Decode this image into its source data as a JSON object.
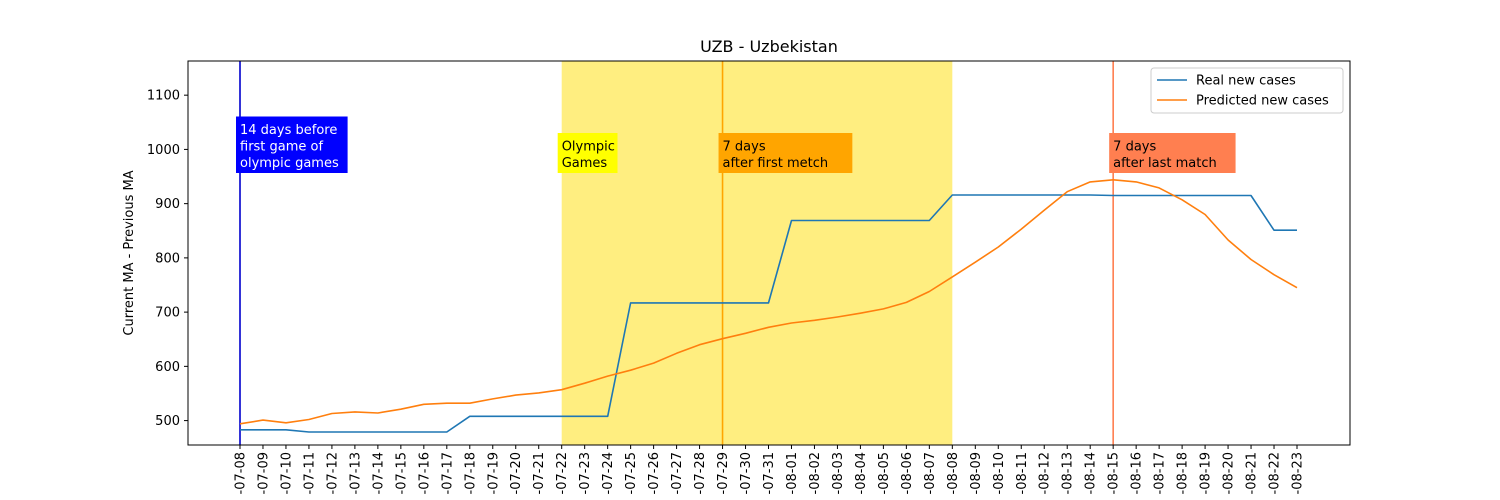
{
  "chart_data": {
    "type": "line",
    "title": "UZB - Uzbekistan",
    "ylabel": "Current MA - Previous MA",
    "xlabel": "",
    "ylim": [
      455,
      1163
    ],
    "yticks": [
      500,
      600,
      700,
      800,
      900,
      1000,
      1100
    ],
    "grid": false,
    "legend_position": "top-right",
    "x": [
      "2021-07-08",
      "2021-07-09",
      "2021-07-10",
      "2021-07-11",
      "2021-07-12",
      "2021-07-13",
      "2021-07-14",
      "2021-07-15",
      "2021-07-16",
      "2021-07-17",
      "2021-07-18",
      "2021-07-19",
      "2021-07-20",
      "2021-07-21",
      "2021-07-22",
      "2021-07-23",
      "2021-07-24",
      "2021-07-25",
      "2021-07-26",
      "2021-07-27",
      "2021-07-28",
      "2021-07-29",
      "2021-07-30",
      "2021-07-31",
      "2021-08-01",
      "2021-08-02",
      "2021-08-03",
      "2021-08-04",
      "2021-08-05",
      "2021-08-06",
      "2021-08-07",
      "2021-08-08",
      "2021-08-09",
      "2021-08-10",
      "2021-08-11",
      "2021-08-12",
      "2021-08-13",
      "2021-08-14",
      "2021-08-15",
      "2021-08-16",
      "2021-08-17",
      "2021-08-18",
      "2021-08-19",
      "2021-08-20",
      "2021-08-21",
      "2021-08-22",
      "2021-08-23"
    ],
    "xtick_labels": [
      "-07-08",
      "-07-09",
      "-07-10",
      "-07-11",
      "-07-12",
      "-07-13",
      "-07-14",
      "-07-15",
      "-07-16",
      "-07-17",
      "-07-18",
      "-07-19",
      "-07-20",
      "-07-21",
      "-07-22",
      "-07-23",
      "-07-24",
      "-07-25",
      "-07-26",
      "-07-27",
      "-07-28",
      "-07-29",
      "-07-30",
      "-07-31",
      "-08-01",
      "-08-02",
      "-08-03",
      "-08-04",
      "-08-05",
      "-08-06",
      "-08-07",
      "-08-08",
      "-08-09",
      "-08-10",
      "-08-11",
      "-08-12",
      "-08-13",
      "-08-14",
      "-08-15",
      "-08-16",
      "-08-17",
      "-08-18",
      "-08-19",
      "-08-20",
      "-08-21",
      "-08-22",
      "-08-23"
    ],
    "series": [
      {
        "name": "Real new cases",
        "color": "#1f77b4",
        "values": [
          483,
          483,
          483,
          479,
          479,
          479,
          479,
          479,
          479,
          479,
          508,
          508,
          508,
          508,
          508,
          508,
          508,
          717,
          717,
          717,
          717,
          717,
          717,
          717,
          869,
          869,
          869,
          869,
          869,
          869,
          869,
          916,
          916,
          916,
          916,
          916,
          916,
          916,
          915,
          915,
          915,
          915,
          915,
          915,
          915,
          851,
          851
        ]
      },
      {
        "name": "Predicted new cases",
        "color": "#ff7f0e",
        "values": [
          494,
          501,
          496,
          502,
          513,
          516,
          514,
          521,
          530,
          532,
          532,
          540,
          547,
          551,
          557,
          569,
          582,
          593,
          606,
          624,
          640,
          651,
          661,
          672,
          680,
          685,
          691,
          698,
          706,
          718,
          738,
          765,
          792,
          820,
          853,
          888,
          922,
          940,
          944,
          940,
          929,
          907,
          880,
          833,
          797,
          769,
          745
        ]
      }
    ],
    "span": {
      "start": "2021-07-22",
      "end": "2021-08-08",
      "color": "#ffee80"
    },
    "vlines": [
      {
        "x": "2021-07-08",
        "color": "#0000cd"
      },
      {
        "x": "2021-07-29",
        "color": "#ffa500"
      },
      {
        "x": "2021-08-15",
        "color": "#ff7f50"
      }
    ],
    "annotations": [
      {
        "x": "2021-07-08",
        "lines": [
          "14 days before",
          "first game of",
          "olympic games"
        ],
        "bg": "#0000ff",
        "fg": "#ffffff"
      },
      {
        "x": "2021-07-22",
        "lines": [
          "Olympic",
          "Games"
        ],
        "bg": "#ffff00",
        "fg": "#000000"
      },
      {
        "x": "2021-07-29",
        "lines": [
          "7 days",
          "after first metch"
        ],
        "bg": "#ffa500",
        "fg": "#000000"
      },
      {
        "x": "2021-08-15",
        "lines": [
          "7 days",
          "after last match"
        ],
        "bg": "#ff7f50",
        "fg": "#000000"
      }
    ]
  }
}
